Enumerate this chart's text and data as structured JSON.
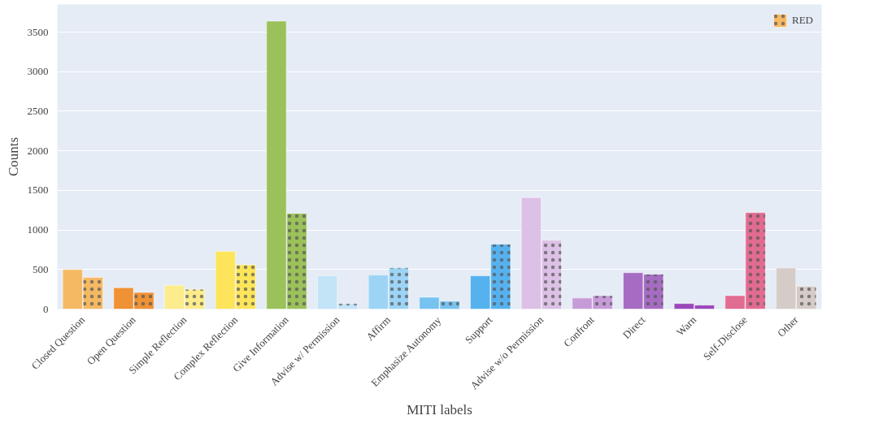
{
  "chart_data": {
    "type": "bar",
    "xlabel": "MITI labels",
    "ylabel": "Counts",
    "categories": [
      "Closed Question",
      "Open Question",
      "Simple Reflection",
      "Complex Reflection",
      "Give Information",
      "Advise w/ Permission",
      "Affirm",
      "Emphasize Autonomy",
      "Support",
      "Advise w/o Permission",
      "Confront",
      "Direct",
      "Warn",
      "Self-Disclose",
      "Other"
    ],
    "series": [
      {
        "colors": [
          "#f5b963",
          "#ef9135",
          "#fcec8c",
          "#fce55a",
          "#9bc15a",
          "#c3e3f7",
          "#9dd4f5",
          "#76c3f0",
          "#56b2ef",
          "#dcc0e5",
          "#c79bd8",
          "#a66cc3",
          "#9b48bb",
          "#e26b91",
          "#d5ccc8"
        ],
        "values": [
          500,
          270,
          300,
          730,
          3640,
          420,
          430,
          150,
          420,
          1410,
          140,
          460,
          70,
          170,
          520
        ]
      },
      {
        "name": "RED",
        "colors": [
          "#f5b963",
          "#ef9135",
          "#fcec8c",
          "#fce55a",
          "#9bc15a",
          "#c3e3f7",
          "#9dd4f5",
          "#76c3f0",
          "#56b2ef",
          "#dcc0e5",
          "#c79bd8",
          "#a66cc3",
          "#9b48bb",
          "#e26b91",
          "#d5ccc8"
        ],
        "values": [
          400,
          210,
          250,
          560,
          1210,
          70,
          520,
          100,
          820,
          870,
          170,
          440,
          50,
          1220,
          290
        ]
      }
    ],
    "ylim": [
      0,
      3850
    ],
    "yticks": [
      0,
      500,
      1000,
      1500,
      2000,
      2500,
      3000,
      3500
    ],
    "grid": "y",
    "legend": "top right"
  }
}
